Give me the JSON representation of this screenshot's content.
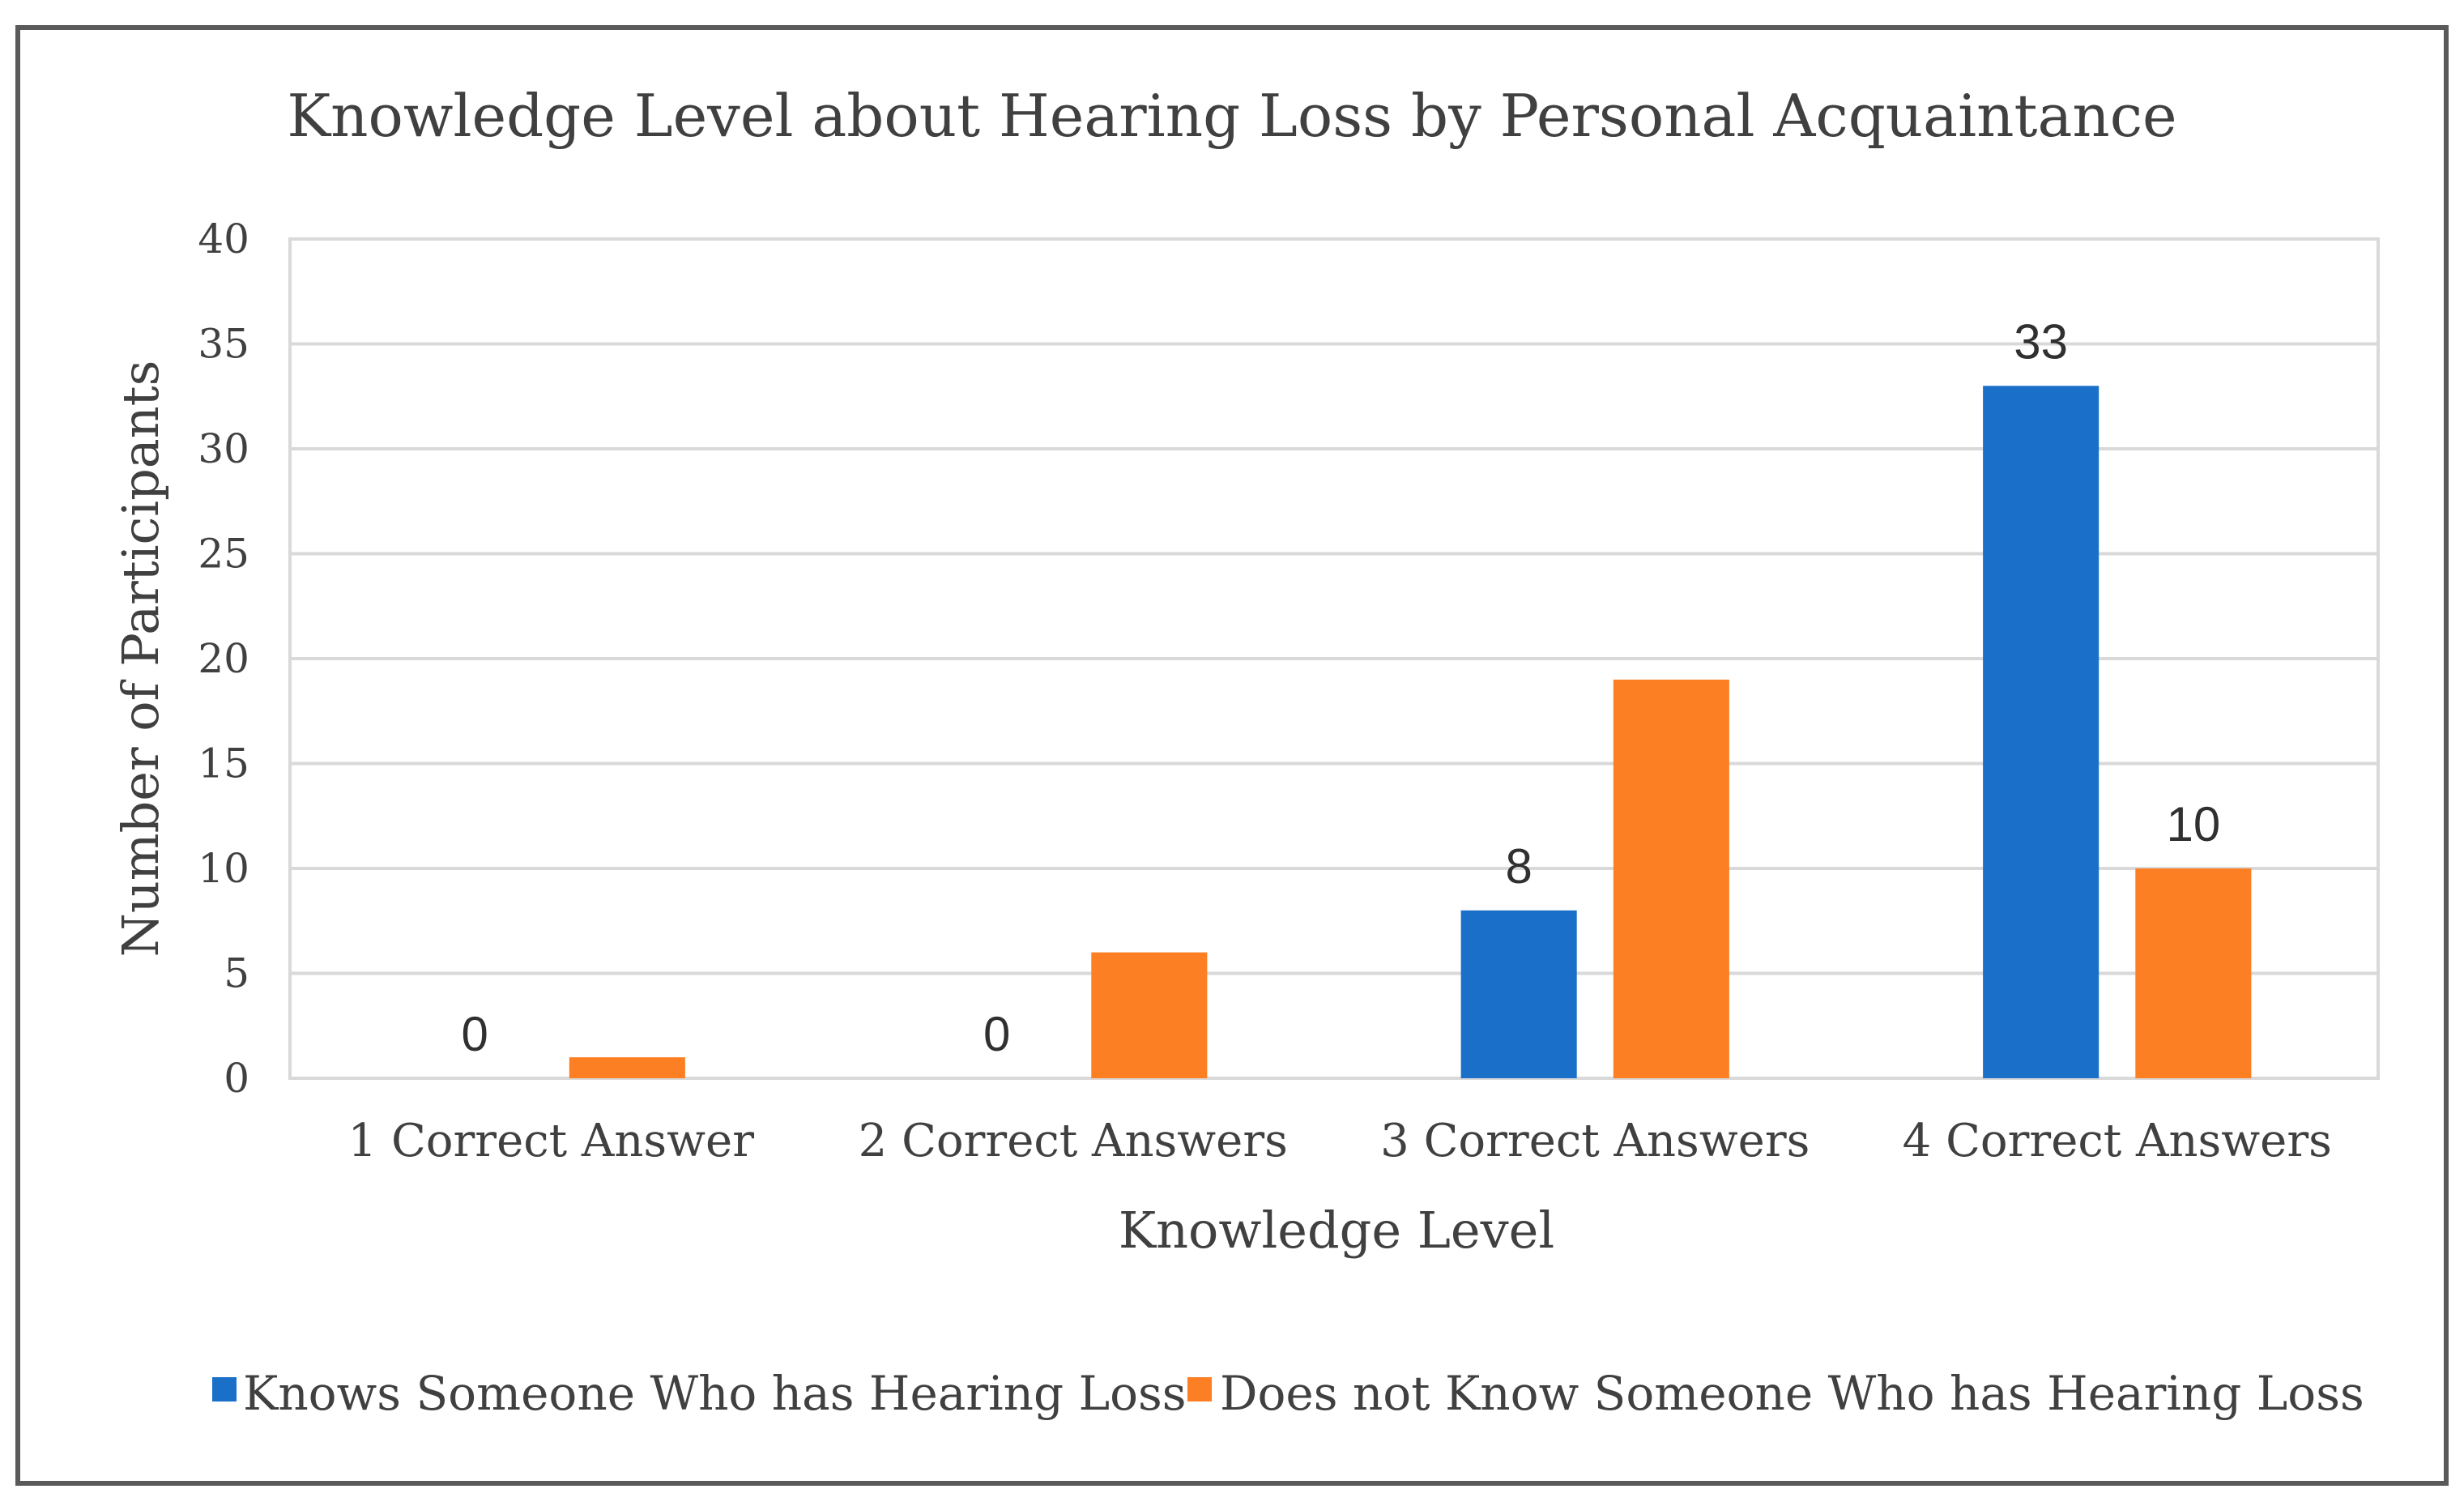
{
  "chart_data": {
    "type": "bar",
    "title": "Knowledge Level about Hearing Loss by Personal Acquaintance",
    "xlabel": "Knowledge Level",
    "ylabel": "Number of Participants",
    "categories": [
      "1 Correct Answer",
      "2 Correct Answers",
      "3 Correct Answers",
      "4 Correct Answers"
    ],
    "series": [
      {
        "name": "Knows Someone Who has Hearing Loss",
        "color": "#1a70c8",
        "values": [
          0,
          0,
          8,
          33
        ],
        "data_labels": [
          "0",
          "0",
          "8",
          "33"
        ]
      },
      {
        "name": "Does not Know Someone Who has Hearing Loss",
        "color": "#fd7f23",
        "values": [
          1,
          6,
          19,
          10
        ],
        "data_labels": [
          "",
          "",
          "",
          "10"
        ]
      }
    ],
    "ylim": [
      0,
      40
    ],
    "yticks": [
      "0",
      "5",
      "10",
      "15",
      "20",
      "25",
      "30",
      "35",
      "40"
    ],
    "grid": true,
    "legend_position": "bottom"
  }
}
